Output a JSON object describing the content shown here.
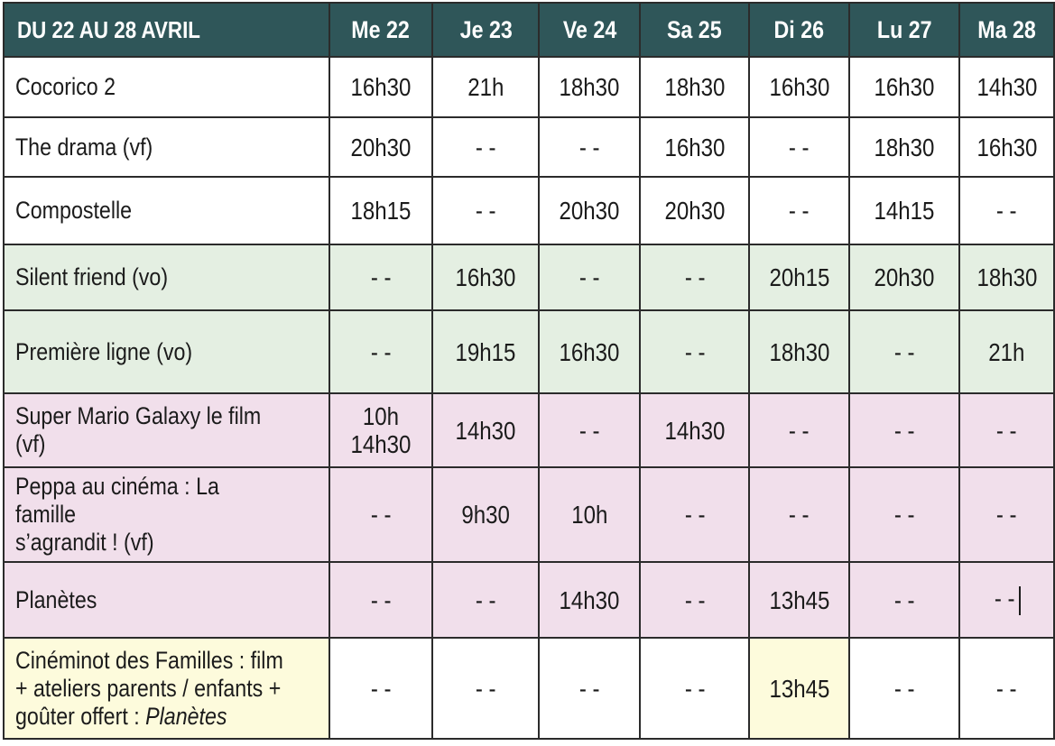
{
  "header": {
    "range": "DU 22 AU 28 AVRIL",
    "days": [
      "Me 22",
      "Je 23",
      "Ve 24",
      "Sa 25",
      "Di 26",
      "Lu 27",
      "Ma 28"
    ]
  },
  "colors": {
    "header_bg": "#2f5659",
    "row_white": "#ffffff",
    "row_green": "#e4efe2",
    "row_pink": "#f1dfeb",
    "row_yellow": "#fdfbdc"
  },
  "rows": [
    {
      "film": "Cocorico 2",
      "times": [
        "16h30",
        "21h",
        "18h30",
        "18h30",
        "16h30",
        "16h30",
        "14h30"
      ]
    },
    {
      "film": "The drama (vf)",
      "times": [
        "20h30",
        "- -",
        "- -",
        "16h30",
        "- -",
        "18h30",
        "16h30"
      ]
    },
    {
      "film": "Compostelle",
      "times": [
        "18h15",
        "- -",
        "20h30",
        "20h30",
        "- -",
        "14h15",
        "- -"
      ]
    },
    {
      "film": "Silent friend (vo)",
      "times": [
        "- -",
        "16h30",
        "- -",
        "- -",
        "20h15",
        "20h30",
        "18h30"
      ]
    },
    {
      "film": "Première ligne (vo)",
      "times": [
        "- -",
        "19h15",
        "16h30",
        "- -",
        "18h30",
        "- -",
        "21h"
      ]
    },
    {
      "film": "Super Mario Galaxy le film (vf)",
      "times": [
        "10h\n14h30",
        "14h30",
        "- -",
        "14h30",
        "- -",
        "- -",
        "- -"
      ]
    },
    {
      "film": "Peppa au cinéma : La famille\ns’agrandit ! (vf)",
      "times": [
        "- -",
        "9h30",
        "10h",
        "- -",
        "- -",
        "- -",
        "- -"
      ]
    },
    {
      "film": " Planètes",
      "times": [
        "- -",
        "- -",
        "14h30",
        "- -",
        "13h45",
        "- -",
        "- -"
      ]
    },
    {
      "film_prefix": "Cinéminot des Familles : film\n+ ateliers parents / enfants +\ngoûter offert : ",
      "film_title": "Planètes",
      "times": [
        "- -",
        "- -",
        "- -",
        "- -",
        "13h45",
        "- -",
        "- -"
      ]
    }
  ]
}
